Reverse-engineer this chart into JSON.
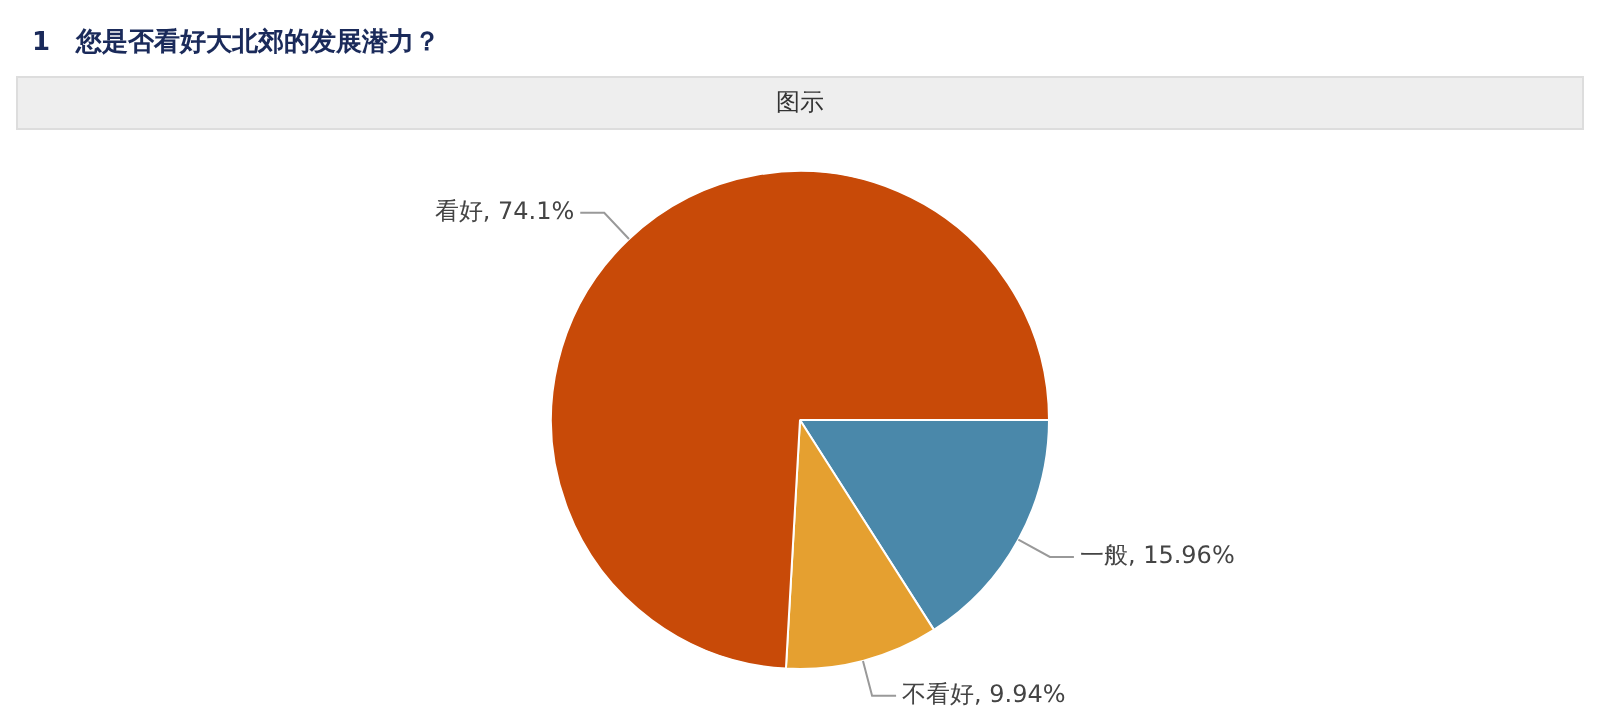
{
  "chart_data": {
    "type": "pie",
    "title": "1　您是否看好大北郊的发展潜力？",
    "subtitle": "图示",
    "categories": [
      "一般",
      "不看好",
      "看好"
    ],
    "values": [
      15.96,
      9.94,
      74.1
    ],
    "value_labels": [
      "15.96%",
      "9.94%",
      "74.1%"
    ],
    "colors": [
      "#4a88aa",
      "#e5a030",
      "#c84a08"
    ],
    "legend": false
  }
}
